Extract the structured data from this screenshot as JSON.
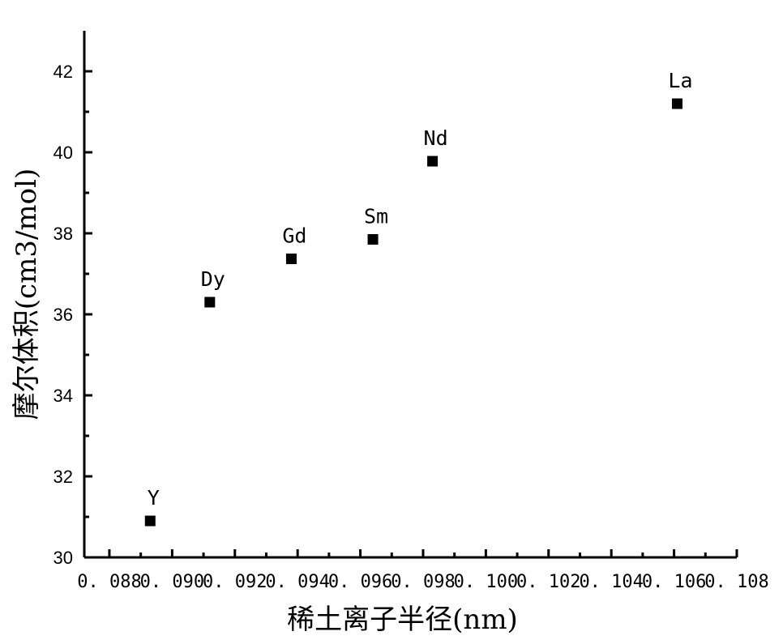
{
  "chart_data": {
    "type": "scatter",
    "title": "",
    "xlabel": "稀土离子半径(nm)",
    "ylabel": "摩尔体积(cm3/mol)",
    "xlim": [
      0.0872,
      0.108
    ],
    "ylim": [
      30,
      43
    ],
    "xticks": [
      0.088,
      0.09,
      0.092,
      0.094,
      0.096,
      0.098,
      0.1,
      0.102,
      0.104,
      0.106,
      0.108
    ],
    "xtick_labels": [
      "0. 088",
      "0. 090",
      "0. 092",
      "0. 094",
      "0. 096",
      "0. 098",
      "0. 100",
      "0. 102",
      "0. 104",
      "0. 106",
      "0. 108"
    ],
    "yticks": [
      30,
      32,
      34,
      36,
      38,
      40,
      42
    ],
    "ytick_labels": [
      "30",
      "32",
      "34",
      "36",
      "38",
      "40",
      "42"
    ],
    "grid": false,
    "marker": "square",
    "marker_color": "#000000",
    "points": [
      {
        "label": "Y",
        "x": 0.0893,
        "y": 30.9
      },
      {
        "label": "Dy",
        "x": 0.0912,
        "y": 36.3
      },
      {
        "label": "Gd",
        "x": 0.0938,
        "y": 37.37
      },
      {
        "label": "Sm",
        "x": 0.0964,
        "y": 37.85
      },
      {
        "label": "Nd",
        "x": 0.0983,
        "y": 39.78
      },
      {
        "label": "La",
        "x": 0.1061,
        "y": 41.2
      }
    ]
  }
}
